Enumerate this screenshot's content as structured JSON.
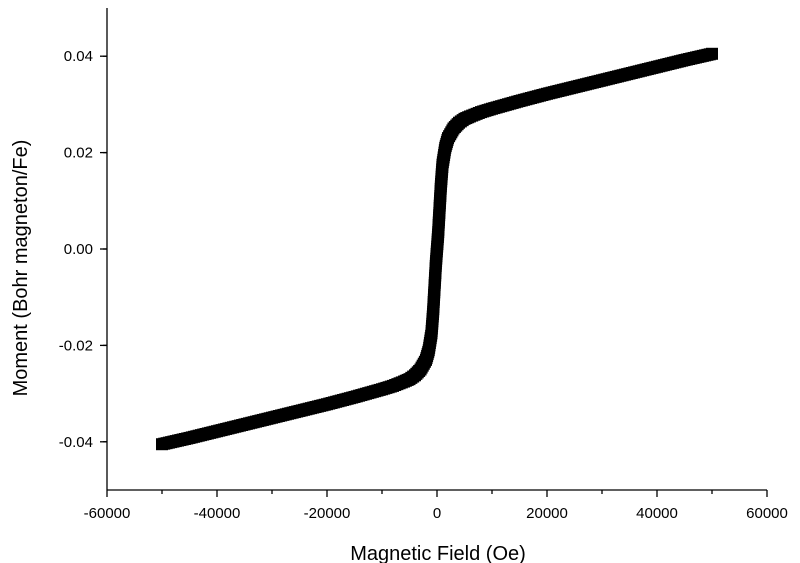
{
  "chart_data": {
    "type": "scatter",
    "title": "",
    "xlabel": "Magnetic Field (Oe)",
    "ylabel": "Moment (Bohr magneton/Fe)",
    "xlim": [
      -60000,
      60000
    ],
    "ylim": [
      -0.05,
      0.05
    ],
    "x_ticks": [
      -60000,
      -40000,
      -20000,
      0,
      20000,
      40000,
      60000
    ],
    "x_tick_labels": [
      "-60000",
      "-40000",
      "-20000",
      "0",
      "20000",
      "40000",
      "60000"
    ],
    "y_ticks": [
      -0.04,
      -0.02,
      0.0,
      0.02,
      0.04
    ],
    "y_tick_labels": [
      "-0.04",
      "-0.02",
      "0.00",
      "0.02",
      "0.04"
    ],
    "grid": false,
    "legend": "none",
    "marker_color": "#000000",
    "series": [
      {
        "x": [
          -50000,
          -45000,
          -40000,
          -35000,
          -30000,
          -25000,
          -20000,
          -15000,
          -10000,
          -8000,
          -6000,
          -5000,
          -4000,
          -3000,
          -2000,
          -1500,
          -1000,
          -700,
          -500,
          -300,
          -200,
          -100,
          0,
          100,
          200,
          300,
          500,
          700,
          1000,
          1500,
          2000,
          3000,
          4000,
          5000,
          6000,
          8000,
          10000,
          15000,
          20000,
          25000,
          30000,
          35000,
          40000,
          45000,
          50000
        ],
        "y": [
          -0.0405,
          -0.0392,
          -0.0378,
          -0.0364,
          -0.035,
          -0.0336,
          -0.0322,
          -0.0307,
          -0.0291,
          -0.0284,
          -0.0275,
          -0.027,
          -0.0262,
          -0.025,
          -0.023,
          -0.021,
          -0.0175,
          -0.013,
          -0.009,
          -0.005,
          -0.003,
          -0.0015,
          0.0,
          0.0015,
          0.003,
          0.005,
          0.009,
          0.013,
          0.0175,
          0.021,
          0.023,
          0.025,
          0.0262,
          0.027,
          0.0275,
          0.0284,
          0.0291,
          0.0307,
          0.0322,
          0.0336,
          0.035,
          0.0364,
          0.0378,
          0.0392,
          0.0405
        ]
      }
    ]
  }
}
